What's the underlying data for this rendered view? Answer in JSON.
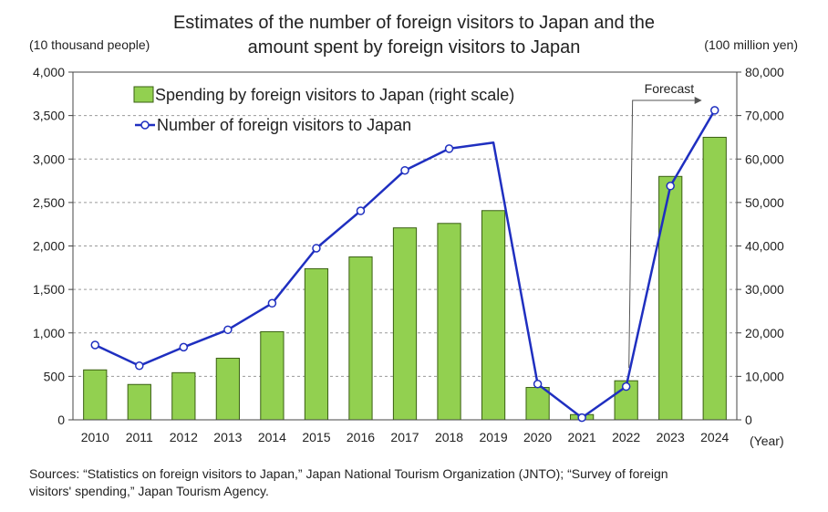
{
  "chart_data": {
    "type": "bar",
    "title_lines": [
      "Estimates of the number of foreign visitors to Japan and the",
      "amount spent by foreign visitors to Japan"
    ],
    "left_unit": "(10 thousand people)",
    "right_unit": "(100 million yen)",
    "xlabel": "(Year)",
    "categories": [
      "2010",
      "2011",
      "2012",
      "2013",
      "2014",
      "2015",
      "2016",
      "2017",
      "2018",
      "2019",
      "2020",
      "2021",
      "2022",
      "2023",
      "2024"
    ],
    "left_axis": {
      "ylim": [
        0,
        4000
      ],
      "ticks": [
        0,
        500,
        1000,
        1500,
        2000,
        2500,
        3000,
        3500,
        4000
      ],
      "tick_labels": [
        "0",
        "500",
        "1,000",
        "1,500",
        "2,000",
        "2,500",
        "3,000",
        "3,500",
        "4,000"
      ]
    },
    "right_axis": {
      "ylim": [
        0,
        80000
      ],
      "ticks": [
        0,
        10000,
        20000,
        30000,
        40000,
        50000,
        60000,
        70000,
        80000
      ],
      "tick_labels": [
        "0",
        "10,000",
        "20,000",
        "30,000",
        "40,000",
        "50,000",
        "60,000",
        "70,000",
        "80,000"
      ]
    },
    "grid": true,
    "series": [
      {
        "name": "Spending by foreign visitors to Japan (right scale)",
        "kind": "bar",
        "axis": "right",
        "color": "#92d050",
        "values": [
          11490,
          8135,
          10846,
          14167,
          20278,
          34771,
          37476,
          44162,
          45189,
          48135,
          7446,
          1208,
          8987,
          56000,
          65000
        ]
      },
      {
        "name": "Number of foreign visitors to Japan",
        "kind": "line",
        "axis": "left",
        "color": "#1f2fc0",
        "marker": "open-circle",
        "values": [
          861,
          622,
          836,
          1036,
          1341,
          1974,
          2404,
          2869,
          3119,
          3188,
          412,
          25,
          383,
          2690,
          3560
        ],
        "no_marker_indices": [
          9
        ]
      }
    ],
    "legend_placement": "top-left",
    "annotation": {
      "text": "Forecast",
      "from_category": "2022"
    }
  },
  "source_lines": [
    "Sources: “Statistics on foreign visitors to Japan,” Japan National Tourism Organization (JNTO); “Survey of foreign",
    "visitors' spending,” Japan Tourism Agency."
  ]
}
